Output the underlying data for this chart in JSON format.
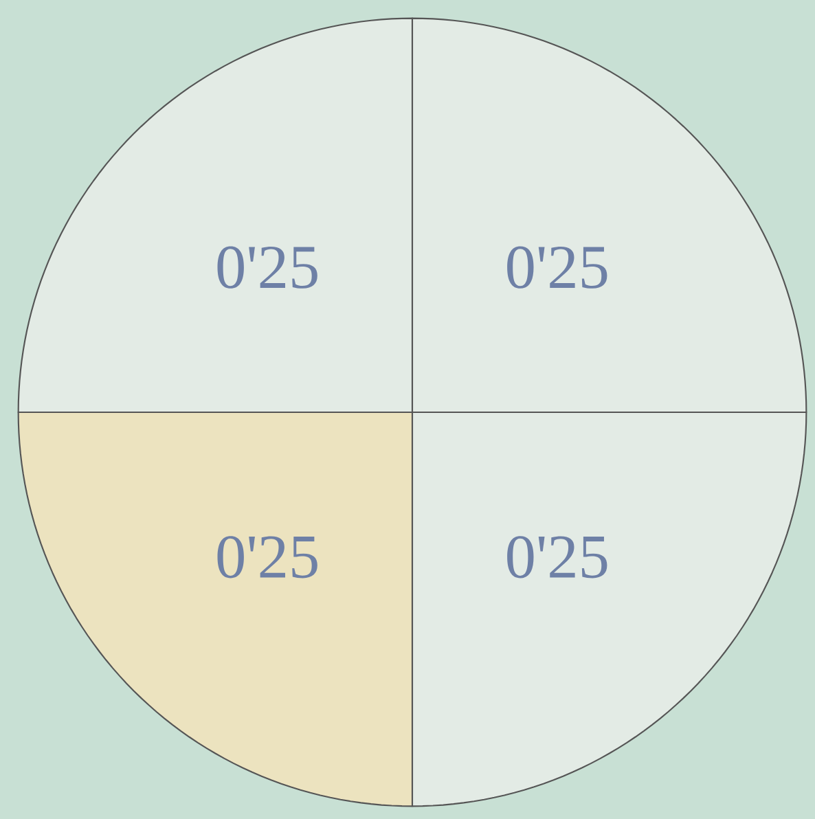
{
  "chart_data": {
    "type": "pie",
    "categories": [
      null,
      null,
      null,
      null
    ],
    "values": [
      0.25,
      0.25,
      0.25,
      0.25
    ],
    "colors": [
      "#e3ebe5",
      "#ece3bf",
      "#e3ebe5",
      "#e3ebe5"
    ],
    "value_labels": [
      "0'25",
      "0'25",
      "0'25",
      "0'25"
    ]
  }
}
